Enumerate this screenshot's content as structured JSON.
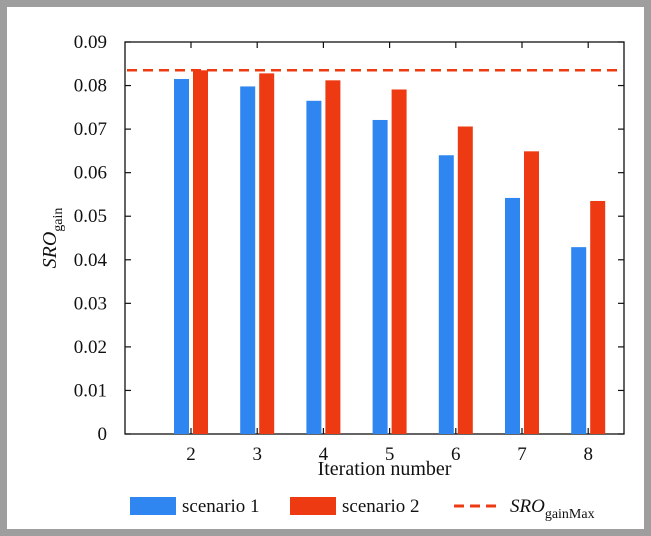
{
  "chart_data": {
    "type": "bar",
    "categories": [
      "2",
      "3",
      "4",
      "5",
      "6",
      "7",
      "8"
    ],
    "series": [
      {
        "name": "scenario 1",
        "color": "#2f86f0",
        "values": [
          0.0815,
          0.0798,
          0.0765,
          0.0721,
          0.064,
          0.0542,
          0.0429
        ]
      },
      {
        "name": "scenario 2",
        "color": "#ee3a12",
        "values": [
          0.0835,
          0.0828,
          0.0812,
          0.0791,
          0.0706,
          0.0649,
          0.0535
        ]
      }
    ],
    "reference_line": {
      "name_base": "SRO",
      "name_sub": "gainMax",
      "value": 0.0835,
      "color": "#ee3a12",
      "style": "dashed"
    },
    "xlabel": "Iteration number",
    "ylabel": {
      "base": "SRO",
      "sub": "gain"
    },
    "ylim": [
      0,
      0.09
    ],
    "yticks": [
      "0",
      "0.01",
      "0.02",
      "0.03",
      "0.04",
      "0.05",
      "0.06",
      "0.07",
      "0.08",
      "0.09"
    ],
    "legend": {
      "position": "bottom"
    },
    "grid": false
  }
}
